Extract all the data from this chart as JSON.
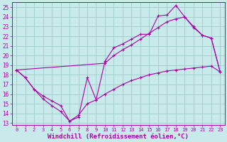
{
  "background_color": "#c8eaea",
  "grid_color": "#a0cccc",
  "line_color": "#aa00aa",
  "marker": "+",
  "xlabel": "Windchill (Refroidissement éolien,°C)",
  "xlabel_fontsize": 6.5,
  "ylabel_ticks": [
    13,
    14,
    15,
    16,
    17,
    18,
    19,
    20,
    21,
    22,
    23,
    24,
    25
  ],
  "xlim": [
    -0.5,
    23.5
  ],
  "ylim": [
    12.8,
    25.5
  ],
  "xticks": [
    0,
    1,
    2,
    3,
    4,
    5,
    6,
    7,
    8,
    9,
    10,
    11,
    12,
    13,
    14,
    15,
    16,
    17,
    18,
    19,
    20,
    21,
    22,
    23
  ],
  "line1_x": [
    0,
    1,
    2,
    3,
    4,
    5,
    6,
    7,
    8,
    9,
    10,
    11,
    12,
    13,
    14,
    15,
    16,
    17,
    18,
    19,
    20,
    21,
    22,
    23
  ],
  "line1_y": [
    18.5,
    17.7,
    16.5,
    15.8,
    15.3,
    14.8,
    13.2,
    13.6,
    17.7,
    15.4,
    16.0,
    16.5,
    17.0,
    17.4,
    17.7,
    18.0,
    18.2,
    18.4,
    18.5,
    18.6,
    18.7,
    18.8,
    18.9,
    18.3
  ],
  "line2_x": [
    0,
    1,
    2,
    3,
    4,
    5,
    6,
    7,
    8,
    9,
    10,
    11,
    12,
    13,
    14,
    15,
    16,
    17,
    18,
    19,
    20,
    21,
    22,
    23
  ],
  "line2_y": [
    18.5,
    17.7,
    16.5,
    15.5,
    14.8,
    14.2,
    13.2,
    13.8,
    15.0,
    15.4,
    19.4,
    20.8,
    21.2,
    21.7,
    22.2,
    22.2,
    24.1,
    24.2,
    25.2,
    24.0,
    22.9,
    22.1,
    21.8,
    18.3
  ],
  "line3_x": [
    0,
    10,
    11,
    12,
    13,
    14,
    15,
    16,
    17,
    18,
    19,
    20,
    21,
    22,
    23
  ],
  "line3_y": [
    18.5,
    19.2,
    20.0,
    20.6,
    21.1,
    21.7,
    22.3,
    22.9,
    23.5,
    23.8,
    24.0,
    23.0,
    22.1,
    21.8,
    18.3
  ]
}
